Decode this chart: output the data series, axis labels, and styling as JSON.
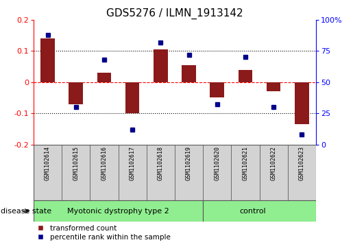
{
  "title": "GDS5276 / ILMN_1913142",
  "samples": [
    "GSM1102614",
    "GSM1102615",
    "GSM1102616",
    "GSM1102617",
    "GSM1102618",
    "GSM1102619",
    "GSM1102620",
    "GSM1102621",
    "GSM1102622",
    "GSM1102623"
  ],
  "red_values": [
    0.14,
    -0.07,
    0.03,
    -0.1,
    0.105,
    0.055,
    -0.05,
    0.04,
    -0.03,
    -0.135
  ],
  "blue_values": [
    88,
    30,
    68,
    12,
    82,
    72,
    32,
    70,
    30,
    8
  ],
  "group1_count": 6,
  "group1_label": "Myotonic dystrophy type 2",
  "group2_label": "control",
  "group_color": "#90EE90",
  "sample_box_color": "#D3D3D3",
  "ylim_left": [
    -0.2,
    0.2
  ],
  "ylim_right": [
    0,
    100
  ],
  "yticks_left": [
    -0.2,
    -0.1,
    0.0,
    0.1,
    0.2
  ],
  "yticks_right": [
    0,
    25,
    50,
    75,
    100
  ],
  "bar_color": "#8B1A1A",
  "dot_color": "#00008B",
  "disease_state_label": "disease state",
  "legend_red_label": "transformed count",
  "legend_blue_label": "percentile rank within the sample",
  "title_fontsize": 11,
  "tick_fontsize": 8,
  "sample_fontsize": 6,
  "group_fontsize": 8,
  "legend_fontsize": 7.5
}
